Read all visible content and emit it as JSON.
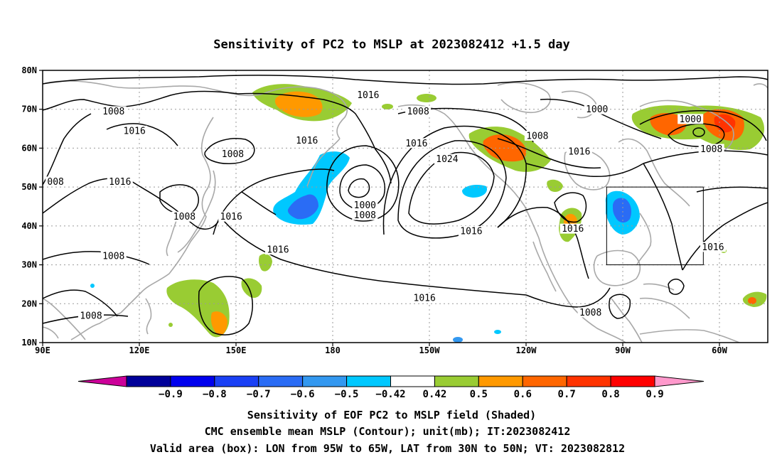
{
  "title": "Sensitivity of PC2 to MSLP at 2023082412 +1.5 day",
  "lat_ticks": [
    {
      "label": "80N",
      "value": 80
    },
    {
      "label": "70N",
      "value": 70
    },
    {
      "label": "60N",
      "value": 60
    },
    {
      "label": "50N",
      "value": 50
    },
    {
      "label": "40N",
      "value": 40
    },
    {
      "label": "30N",
      "value": 30
    },
    {
      "label": "20N",
      "value": 20
    },
    {
      "label": "10N",
      "value": 10
    }
  ],
  "lon_ticks": [
    {
      "label": "90E",
      "value": 90
    },
    {
      "label": "120E",
      "value": 120
    },
    {
      "label": "150E",
      "value": 150
    },
    {
      "label": "180",
      "value": 180
    },
    {
      "label": "150W",
      "value": 210
    },
    {
      "label": "120W",
      "value": 240
    },
    {
      "label": "90W",
      "value": 270
    },
    {
      "label": "60W",
      "value": 300
    }
  ],
  "map_extent": {
    "lon_min": 90,
    "lon_max": 315,
    "lat_min": 10,
    "lat_max": 80
  },
  "valid_box": {
    "lon_min": 265,
    "lon_max": 295,
    "lat_min": 30,
    "lat_max": 50
  },
  "contour_labels": [
    {
      "text": "1016",
      "lon": 191,
      "lat": 73.7
    },
    {
      "text": "1008",
      "lon": 112,
      "lat": 69.5
    },
    {
      "text": "1008",
      "lon": 206.5,
      "lat": 69.5
    },
    {
      "text": "1000",
      "lon": 262,
      "lat": 70
    },
    {
      "text": "1016",
      "lon": 118.5,
      "lat": 64.5
    },
    {
      "text": "1000",
      "lon": 291,
      "lat": 67.5
    },
    {
      "text": "1008",
      "lon": 243.5,
      "lat": 63.2
    },
    {
      "text": "1016",
      "lon": 172,
      "lat": 62
    },
    {
      "text": "1016",
      "lon": 206,
      "lat": 61.3
    },
    {
      "text": "1008",
      "lon": 297.5,
      "lat": 59.8
    },
    {
      "text": "1008",
      "lon": 149,
      "lat": 58.5
    },
    {
      "text": "1016",
      "lon": 256.5,
      "lat": 59.2
    },
    {
      "text": "1024",
      "lon": 215.5,
      "lat": 57.2
    },
    {
      "text": "1016",
      "lon": 114,
      "lat": 51.4
    },
    {
      "text": "008",
      "lon": 94,
      "lat": 51.4
    },
    {
      "text": "1000",
      "lon": 190,
      "lat": 45.4
    },
    {
      "text": "1008",
      "lon": 190,
      "lat": 42.8
    },
    {
      "text": "1008",
      "lon": 134,
      "lat": 42.4
    },
    {
      "text": "1016",
      "lon": 148.5,
      "lat": 42.4
    },
    {
      "text": "1016",
      "lon": 223,
      "lat": 38.7
    },
    {
      "text": "1016",
      "lon": 254.5,
      "lat": 39.3
    },
    {
      "text": "1016",
      "lon": 163,
      "lat": 33.9
    },
    {
      "text": "1016",
      "lon": 298,
      "lat": 34.6
    },
    {
      "text": "1008",
      "lon": 112,
      "lat": 32.3
    },
    {
      "text": "1016",
      "lon": 208.5,
      "lat": 21.5
    },
    {
      "text": "1008",
      "lon": 260,
      "lat": 17.8
    },
    {
      "text": "1008",
      "lon": 105,
      "lat": 16.9
    }
  ],
  "colorbar": {
    "colors": [
      "#000099",
      "#0000ee",
      "#1a40f5",
      "#2a6cf5",
      "#3398f0",
      "#00c8ff",
      "#ffffff",
      "#99cc33",
      "#ff9900",
      "#ff6600",
      "#ff3300",
      "#ff0000"
    ],
    "under_color": "#cc0099",
    "over_color": "#ff99cc",
    "labels": [
      "−0.9",
      "−0.8",
      "−0.7",
      "−0.6",
      "−0.5",
      "−0.42",
      "0.42",
      "0.5",
      "0.6",
      "0.7",
      "0.8",
      "0.9"
    ]
  },
  "footer": {
    "line1": "Sensitivity of EOF PC2 to MSLP field (Shaded)",
    "line2": "CMC ensemble mean MSLP (Contour); unit(mb); IT:2023082412",
    "line3": "Valid area (box): LON from 95W to 65W, LAT from 30N to 50N; VT: 2023082812"
  }
}
